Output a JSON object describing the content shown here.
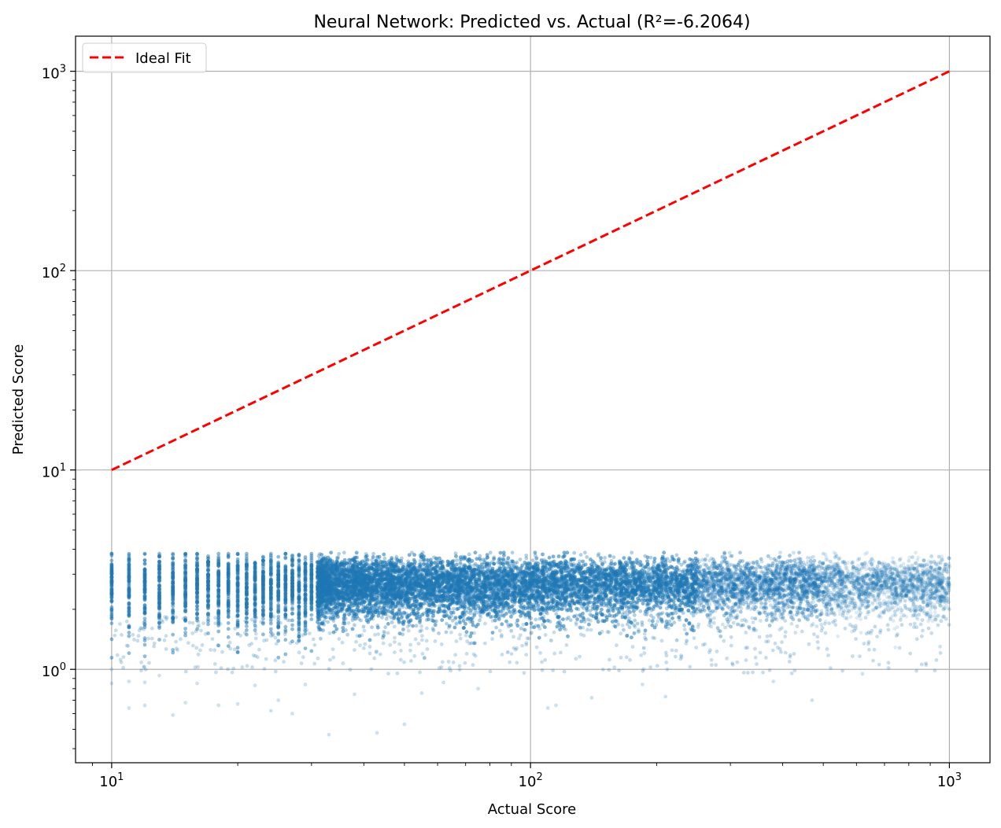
{
  "chart_data": {
    "type": "scatter",
    "title": "Neural Network: Predicted vs. Actual (R²=-6.2064)",
    "xlabel": "Actual Score",
    "ylabel": "Predicted Score",
    "xscale": "log",
    "yscale": "log",
    "xlim": [
      8.2,
      1250
    ],
    "ylim": [
      0.34,
      1500
    ],
    "x_tick_values": [
      10,
      100,
      1000
    ],
    "y_tick_values": [
      1,
      10,
      100,
      1000
    ],
    "x_tick_labels": [
      {
        "base": "10",
        "exp": "1"
      },
      {
        "base": "10",
        "exp": "2"
      },
      {
        "base": "10",
        "exp": "3"
      }
    ],
    "y_tick_labels": [
      {
        "base": "10",
        "exp": "0"
      },
      {
        "base": "10",
        "exp": "1"
      },
      {
        "base": "10",
        "exp": "2"
      },
      {
        "base": "10",
        "exp": "3"
      }
    ],
    "grid": true,
    "legend": {
      "position": "upper-left",
      "entries": [
        {
          "label": "Ideal Fit",
          "style": "dashed",
          "color": "#ff0000"
        }
      ]
    },
    "series": [
      {
        "name": "Ideal Fit",
        "kind": "line",
        "style": "dashed",
        "color": "#ff0000",
        "x": [
          10,
          1000
        ],
        "y": [
          10,
          1000
        ]
      },
      {
        "kind": "scatter",
        "color": "#1f77b4",
        "alpha": 0.15,
        "description_of_cloud": {
          "x_range": [
            10,
            1000
          ],
          "typical_y_range": [
            1.6,
            3.7
          ],
          "outlier_min_y": 0.47,
          "discrete_x_integers_below": 31
        },
        "sample_points": [
          [
            10,
            3.8
          ],
          [
            10,
            1.0
          ],
          [
            10,
            0.85
          ],
          [
            11,
            0.64
          ],
          [
            11,
            0.87
          ],
          [
            12,
            0.66
          ],
          [
            12,
            0.86
          ],
          [
            13,
            0.93
          ],
          [
            14,
            0.59
          ],
          [
            15,
            0.68
          ],
          [
            16,
            0.85
          ],
          [
            18,
            0.66
          ],
          [
            20,
            0.67
          ],
          [
            22,
            0.83
          ],
          [
            24,
            0.62
          ],
          [
            25,
            0.7
          ],
          [
            27,
            0.6
          ],
          [
            29,
            0.84
          ],
          [
            33,
            0.47
          ],
          [
            38,
            0.75
          ],
          [
            43,
            0.48
          ],
          [
            50,
            0.53
          ],
          [
            55,
            0.76
          ],
          [
            62,
            0.86
          ],
          [
            75,
            0.8
          ],
          [
            110,
            0.64
          ],
          [
            115,
            0.66
          ],
          [
            140,
            0.72
          ],
          [
            185,
            0.84
          ],
          [
            210,
            0.73
          ],
          [
            380,
            0.87
          ],
          [
            470,
            0.7
          ],
          [
            620,
            0.95
          ],
          [
            880,
            1.05
          ],
          [
            950,
            1.3
          ],
          [
            1000,
            2.0
          ],
          [
            1000,
            3.6
          ],
          [
            800,
            3.5
          ],
          [
            500,
            3.8
          ],
          [
            300,
            3.7
          ]
        ]
      }
    ]
  }
}
